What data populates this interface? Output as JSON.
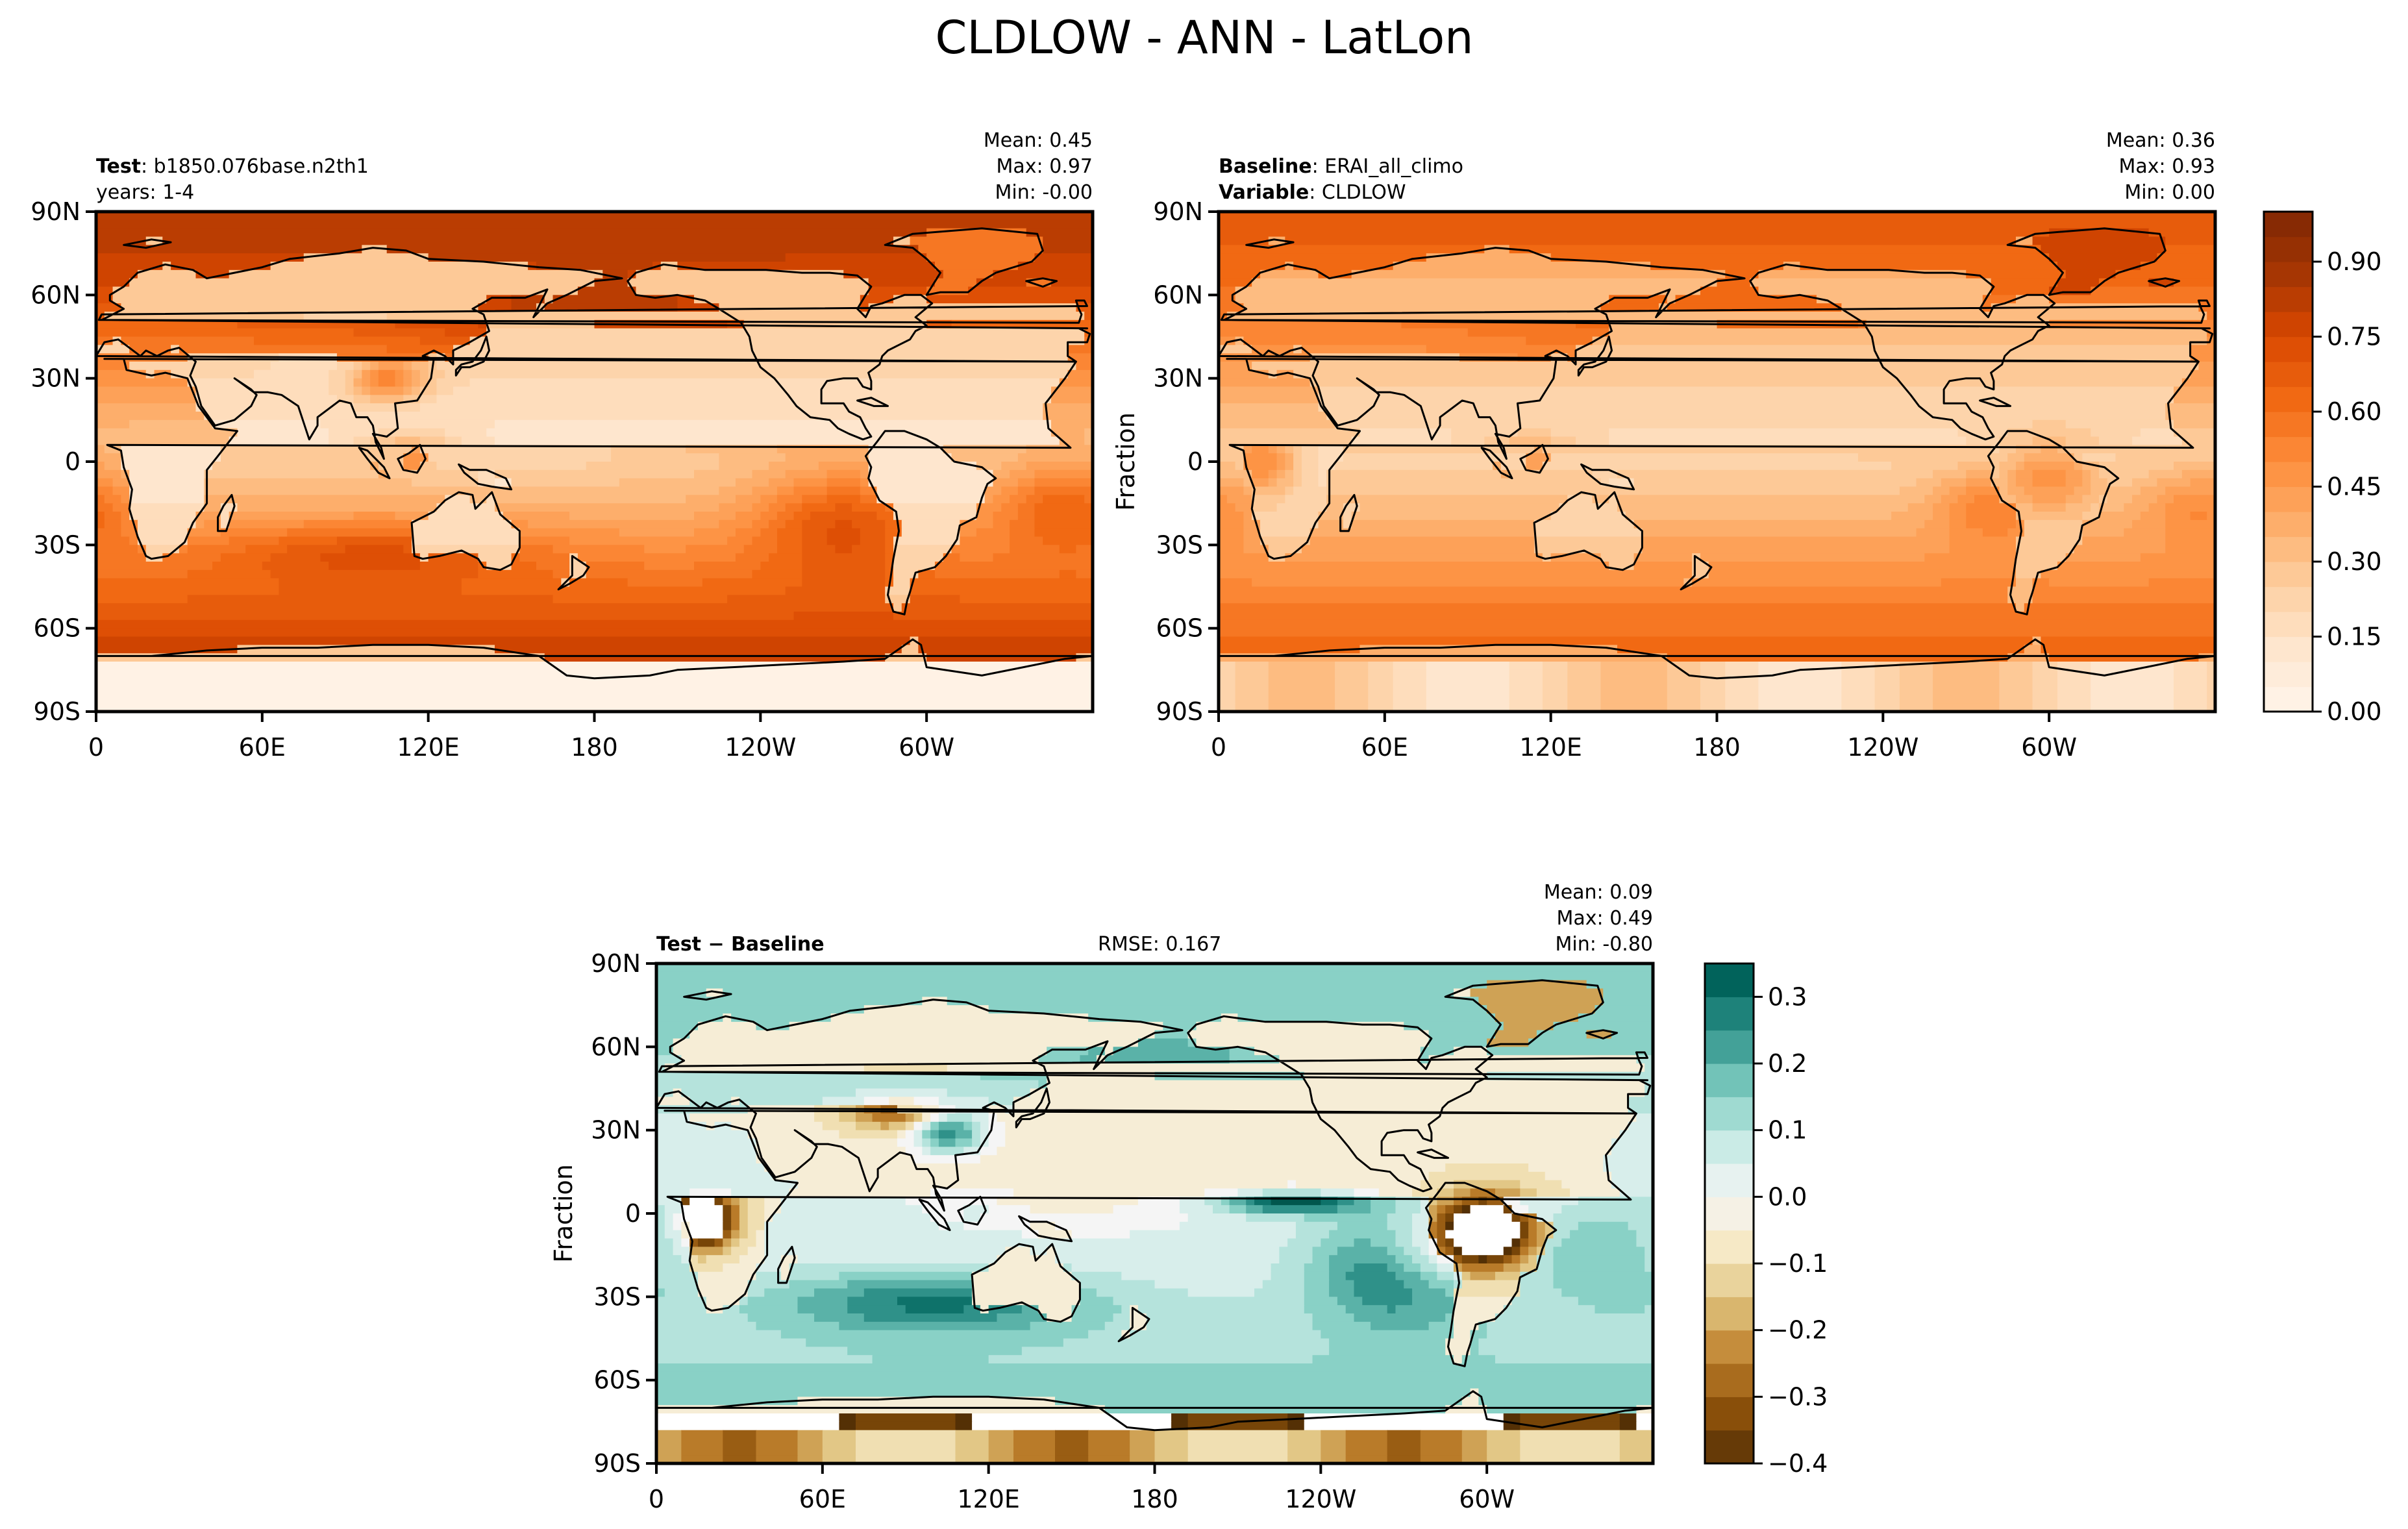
{
  "figure": {
    "title": "CLDLOW - ANN - LatLon"
  },
  "chart_data": [
    {
      "type": "heatmap",
      "panel": "test",
      "header_left": [
        {
          "bold": "Test",
          "text": ": b1850.076base.n2th1"
        },
        {
          "bold": "",
          "text": "years: 1-4"
        }
      ],
      "stats": [
        {
          "label": "Mean:",
          "value": "0.45"
        },
        {
          "label": "Max:",
          "value": "0.97"
        },
        {
          "label": "Min:",
          "value": "-0.00"
        }
      ],
      "ylabel": "",
      "x_ticks": [
        "0",
        "60E",
        "120E",
        "180",
        "120W",
        "60W"
      ],
      "y_ticks": [
        "90N",
        "60N",
        "30N",
        "0",
        "30S",
        "60S",
        "90S"
      ],
      "xlim": [
        0,
        360
      ],
      "ylim": [
        -90,
        90
      ],
      "colormap": "Oranges",
      "value_range": [
        0,
        0.97
      ]
    },
    {
      "type": "heatmap",
      "panel": "baseline",
      "header_left": [
        {
          "bold": "Baseline",
          "text": ": ERAI_all_climo"
        },
        {
          "bold": "Variable",
          "text": ": CLDLOW"
        }
      ],
      "stats": [
        {
          "label": "Mean:",
          "value": "0.36"
        },
        {
          "label": "Max:",
          "value": "0.93"
        },
        {
          "label": "Min:",
          "value": "0.00"
        }
      ],
      "ylabel": "Fraction",
      "x_ticks": [
        "0",
        "60E",
        "120E",
        "180",
        "120W",
        "60W"
      ],
      "y_ticks": [
        "90N",
        "60N",
        "30N",
        "0",
        "30S",
        "60S",
        "90S"
      ],
      "xlim": [
        0,
        360
      ],
      "ylim": [
        -90,
        90
      ],
      "colormap": "Oranges",
      "value_range": [
        0,
        0.93
      ],
      "colorbar_ticks": [
        "0.00",
        "0.15",
        "0.30",
        "0.45",
        "0.60",
        "0.75",
        "0.90"
      ],
      "colorbar_range": [
        0,
        1.0
      ]
    },
    {
      "type": "heatmap",
      "panel": "difference",
      "header_left": [
        {
          "bold": "Test − Baseline",
          "text": ""
        }
      ],
      "header_center": "RMSE: 0.167",
      "stats": [
        {
          "label": "Mean:",
          "value": "0.09"
        },
        {
          "label": "Max:",
          "value": "0.49"
        },
        {
          "label": "Min:",
          "value": "-0.80"
        }
      ],
      "ylabel": "Fraction",
      "x_ticks": [
        "0",
        "60E",
        "120E",
        "180",
        "120W",
        "60W"
      ],
      "y_ticks": [
        "90N",
        "60N",
        "30N",
        "0",
        "30S",
        "60S",
        "90S"
      ],
      "xlim": [
        0,
        360
      ],
      "ylim": [
        -90,
        90
      ],
      "colormap": "BrBG",
      "value_range": [
        -0.8,
        0.49
      ],
      "colorbar_ticks": [
        "0.3",
        "0.2",
        "0.1",
        "0.0",
        "−0.1",
        "−0.2",
        "−0.3",
        "−0.4"
      ],
      "colorbar_range": [
        -0.4,
        0.35
      ]
    }
  ],
  "colors": {
    "oranges": [
      "#fff5eb",
      "#fee6ce",
      "#fdd0a2",
      "#fdae6b",
      "#fd8d3c",
      "#f16913",
      "#d94801",
      "#a63603",
      "#7f2704"
    ],
    "brbg": [
      "#543005",
      "#8c510a",
      "#bf812d",
      "#dfc27d",
      "#f6e8c3",
      "#f5f5f5",
      "#c7eae5",
      "#80cdc1",
      "#35978f",
      "#01665e",
      "#003c30"
    ]
  }
}
